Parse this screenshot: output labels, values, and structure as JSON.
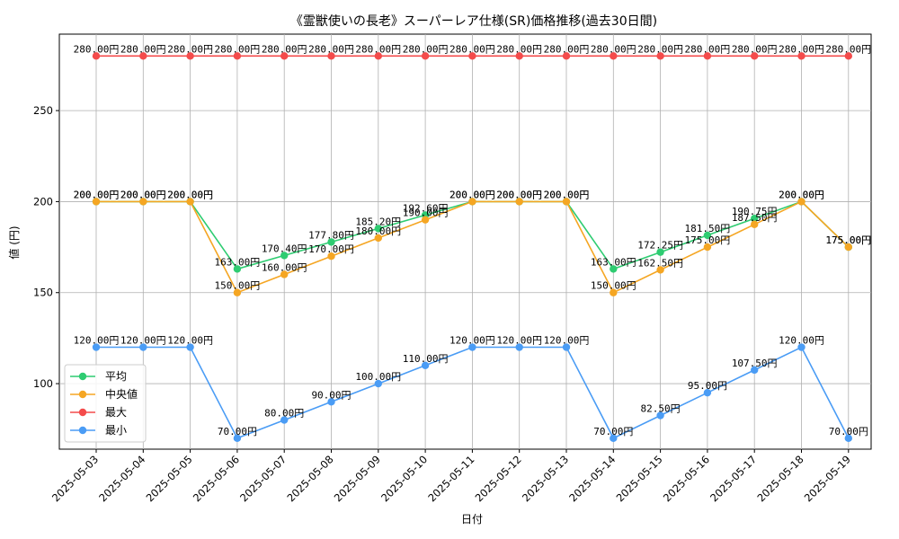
{
  "chart_data": {
    "type": "line",
    "title": "《霊獣使いの長老》スーパーレア仕様(SR)価格推移(過去30日間)",
    "xlabel": "日付",
    "ylabel": "値 (円)",
    "ylim": [
      64,
      292
    ],
    "yticks": [
      100,
      150,
      200,
      250
    ],
    "grid": true,
    "legend_position": "lower-left",
    "label_suffix": "円",
    "categories": [
      "2025-05-03",
      "2025-05-04",
      "2025-05-05",
      "2025-05-06",
      "2025-05-07",
      "2025-05-08",
      "2025-05-09",
      "2025-05-10",
      "2025-05-11",
      "2025-05-12",
      "2025-05-13",
      "2025-05-14",
      "2025-05-15",
      "2025-05-16",
      "2025-05-17",
      "2025-05-18",
      "2025-05-19"
    ],
    "series": [
      {
        "name": "平均",
        "color": "#2ecc71",
        "values": [
          200,
          200,
          200,
          163,
          170.4,
          177.8,
          185.2,
          192.6,
          200,
          200,
          200,
          163,
          172.25,
          181.5,
          190.75,
          200,
          175
        ]
      },
      {
        "name": "中央値",
        "color": "#f5a623",
        "values": [
          200,
          200,
          200,
          150,
          160,
          170,
          180,
          190,
          200,
          200,
          200,
          150,
          162.5,
          175,
          187.5,
          200,
          175
        ]
      },
      {
        "name": "最大",
        "color": "#f44b4b",
        "values": [
          280,
          280,
          280,
          280,
          280,
          280,
          280,
          280,
          280,
          280,
          280,
          280,
          280,
          280,
          280,
          280,
          280
        ]
      },
      {
        "name": "最小",
        "color": "#4a9cf5",
        "values": [
          120,
          120,
          120,
          70,
          80,
          90,
          100,
          110,
          120,
          120,
          120,
          70,
          82.5,
          95,
          107.5,
          120,
          70
        ]
      }
    ]
  }
}
